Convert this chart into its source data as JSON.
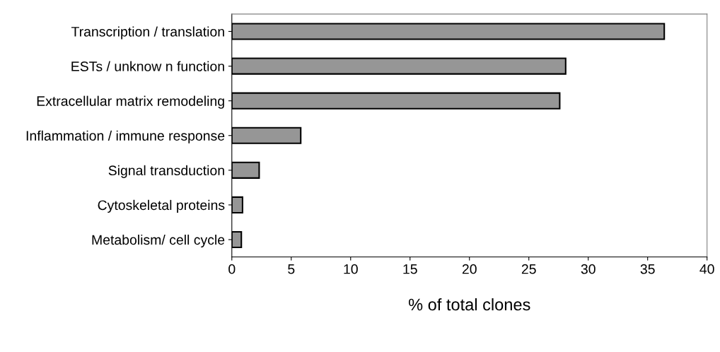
{
  "chart_data": {
    "type": "bar",
    "orientation": "horizontal",
    "xlabel": "% of total clones",
    "categories": [
      "Transcription / translation",
      "ESTs / unknow n function",
      "Extracellular matrix remodeling",
      "Inflammation / immune response",
      "Signal transduction",
      "Cytoskeletal proteins",
      "Metabolism/ cell cycle"
    ],
    "values": [
      36.4,
      28.1,
      27.6,
      5.8,
      2.3,
      0.9,
      0.8
    ],
    "color": "#969696",
    "xlim": [
      0,
      40
    ],
    "xticks": [
      0,
      5,
      10,
      15,
      20,
      25,
      30,
      35,
      40
    ],
    "grid": false
  }
}
